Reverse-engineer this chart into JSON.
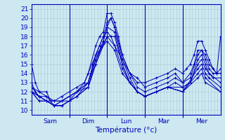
{
  "xlabel": "Température (°c)",
  "ylim": [
    9.5,
    21.5
  ],
  "yticks": [
    10,
    11,
    12,
    13,
    14,
    15,
    16,
    17,
    18,
    19,
    20,
    21
  ],
  "background_color": "#cde8f0",
  "grid_color": "#aac8d8",
  "line_color": "#0000bb",
  "xtick_positions": [
    0.5,
    1.5,
    2.5,
    3.5,
    4.5
  ],
  "xtick_labels": [
    "Sam",
    "Dim",
    "Lun",
    "Mar",
    "Mer"
  ],
  "series": [
    [
      0.0,
      15.0,
      0.1,
      13.0,
      0.2,
      12.0,
      0.4,
      12.0,
      0.5,
      11.0,
      0.6,
      11.0,
      0.8,
      11.5,
      1.0,
      12.0,
      1.2,
      12.5,
      1.4,
      13.0,
      1.5,
      14.0,
      1.6,
      15.0,
      1.7,
      16.0,
      1.8,
      17.0,
      1.9,
      18.0,
      2.0,
      18.5,
      2.1,
      18.0,
      2.2,
      17.0,
      2.4,
      15.5,
      2.6,
      14.0,
      2.8,
      13.0,
      3.0,
      13.0,
      3.3,
      13.5,
      3.6,
      14.0,
      3.8,
      14.5,
      4.0,
      14.0,
      4.1,
      14.5,
      4.2,
      15.0,
      4.3,
      16.0,
      4.4,
      17.5,
      4.5,
      17.5,
      4.6,
      16.5,
      4.7,
      15.5,
      4.8,
      14.5,
      4.9,
      14.0,
      5.0,
      18.0
    ],
    [
      0.0,
      13.0,
      0.1,
      12.0,
      0.2,
      11.5,
      0.4,
      11.5,
      0.5,
      11.0,
      0.6,
      10.5,
      0.8,
      11.0,
      1.0,
      11.5,
      1.2,
      12.0,
      1.4,
      13.0,
      1.5,
      14.0,
      1.7,
      17.0,
      1.8,
      18.0,
      1.9,
      18.5,
      2.0,
      20.5,
      2.1,
      20.5,
      2.2,
      19.5,
      2.3,
      18.0,
      2.4,
      16.0,
      2.6,
      14.0,
      2.8,
      13.5,
      3.0,
      12.5,
      3.3,
      13.0,
      3.6,
      13.5,
      3.8,
      14.0,
      4.0,
      13.0,
      4.2,
      14.0,
      4.3,
      15.0,
      4.4,
      16.5,
      4.5,
      16.5,
      4.6,
      16.0,
      4.7,
      15.0,
      4.8,
      14.5,
      4.9,
      14.0,
      5.0,
      14.5
    ],
    [
      0.0,
      12.0,
      0.2,
      11.5,
      0.4,
      11.0,
      0.6,
      10.5,
      0.8,
      11.0,
      1.0,
      11.0,
      1.2,
      11.5,
      1.5,
      13.0,
      1.7,
      16.0,
      1.9,
      18.0,
      2.0,
      19.5,
      2.1,
      20.0,
      2.2,
      19.0,
      2.4,
      16.0,
      2.6,
      14.0,
      2.8,
      12.5,
      3.0,
      12.0,
      3.3,
      12.5,
      3.6,
      13.0,
      3.8,
      13.5,
      4.0,
      13.0,
      4.2,
      13.5,
      4.4,
      16.0,
      4.5,
      16.5,
      4.6,
      15.5,
      4.7,
      14.5,
      4.8,
      14.0,
      5.0,
      14.0
    ],
    [
      0.0,
      12.0,
      0.2,
      11.0,
      0.4,
      11.0,
      0.6,
      10.5,
      0.8,
      10.5,
      1.0,
      11.0,
      1.2,
      11.5,
      1.5,
      12.5,
      1.7,
      15.0,
      1.9,
      17.5,
      2.0,
      19.0,
      2.1,
      20.0,
      2.2,
      19.0,
      2.4,
      15.5,
      2.6,
      13.5,
      2.8,
      12.0,
      3.0,
      11.5,
      3.3,
      12.0,
      3.6,
      12.5,
      3.8,
      13.0,
      4.0,
      12.5,
      4.2,
      13.0,
      4.4,
      15.5,
      4.5,
      16.0,
      4.6,
      15.0,
      4.7,
      14.0,
      4.8,
      13.5,
      5.0,
      13.5
    ],
    [
      0.0,
      12.0,
      0.2,
      11.5,
      0.4,
      11.0,
      0.6,
      10.5,
      0.8,
      10.5,
      1.0,
      11.0,
      1.2,
      12.0,
      1.5,
      12.5,
      1.7,
      15.5,
      1.9,
      17.5,
      2.0,
      19.0,
      2.2,
      18.5,
      2.4,
      15.0,
      2.6,
      13.0,
      2.8,
      12.0,
      3.0,
      11.5,
      3.3,
      12.0,
      3.6,
      12.5,
      4.0,
      12.5,
      4.2,
      13.0,
      4.4,
      15.0,
      4.5,
      15.5,
      4.6,
      14.5,
      4.7,
      14.0,
      5.0,
      13.0
    ],
    [
      0.0,
      12.0,
      0.2,
      11.0,
      0.4,
      11.0,
      0.6,
      10.5,
      0.8,
      10.5,
      1.0,
      11.0,
      1.2,
      11.5,
      1.5,
      12.5,
      1.7,
      15.0,
      2.0,
      18.0,
      2.2,
      18.0,
      2.4,
      15.0,
      2.6,
      13.0,
      2.8,
      12.0,
      3.0,
      11.5,
      3.3,
      12.0,
      3.6,
      12.5,
      4.0,
      12.0,
      4.4,
      14.5,
      4.5,
      15.0,
      4.6,
      14.0,
      4.7,
      13.5,
      5.0,
      12.5
    ],
    [
      0.0,
      12.5,
      0.2,
      11.5,
      0.4,
      11.0,
      0.6,
      11.0,
      0.8,
      11.0,
      1.0,
      11.5,
      1.2,
      12.0,
      1.5,
      13.0,
      1.7,
      15.5,
      2.0,
      18.0,
      2.2,
      17.0,
      2.4,
      14.5,
      2.6,
      13.0,
      2.8,
      12.0,
      3.0,
      11.5,
      3.3,
      12.0,
      3.6,
      12.5,
      4.0,
      12.0,
      4.4,
      14.0,
      4.5,
      14.5,
      4.6,
      13.5,
      5.0,
      12.0
    ],
    [
      0.0,
      12.5,
      0.2,
      12.0,
      0.4,
      11.5,
      0.6,
      11.0,
      0.8,
      11.0,
      1.0,
      11.5,
      1.2,
      12.0,
      1.5,
      13.0,
      1.7,
      16.0,
      2.0,
      17.5,
      2.2,
      16.5,
      2.4,
      14.0,
      2.6,
      13.0,
      2.8,
      12.0,
      3.0,
      11.5,
      3.3,
      12.0,
      3.6,
      12.5,
      4.0,
      12.0,
      4.4,
      13.5,
      4.5,
      14.0,
      4.6,
      13.0,
      5.0,
      12.0
    ]
  ]
}
